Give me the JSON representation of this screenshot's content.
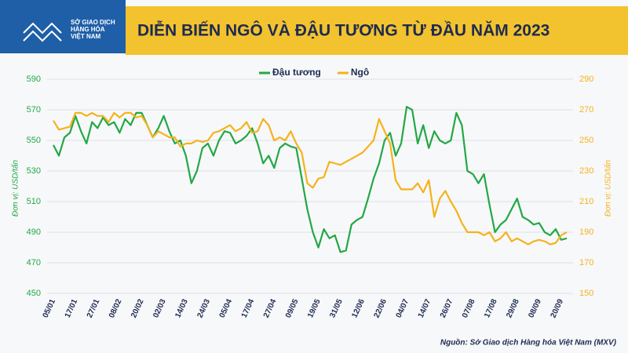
{
  "chart_data": {
    "type": "line",
    "brand": [
      "SỞ GIAO DỊCH",
      "HÀNG HÓA",
      "VIỆT NAM"
    ],
    "title": "DIỄN BIẾN NGÔ VÀ ĐẬU TƯƠNG TỪ ĐẦU NĂM 2023",
    "y_label": "Đơn vị: USD/tấn",
    "y2_label": "Đơn vị: USD/tấn",
    "source": "Nguồn: Sở Giao dịch Hàng hóa Việt Nam (MXV)",
    "legend": "top",
    "categories": [
      "05/01",
      null,
      null,
      null,
      "17/01",
      null,
      null,
      null,
      "27/01",
      null,
      null,
      null,
      "08/02",
      null,
      null,
      null,
      "20/02",
      null,
      null,
      null,
      "02/03",
      null,
      null,
      null,
      "14/03",
      null,
      null,
      null,
      "24/03",
      null,
      null,
      null,
      "05/04",
      null,
      null,
      null,
      "17/04",
      null,
      null,
      null,
      "27/04",
      null,
      null,
      null,
      "09/05",
      null,
      null,
      null,
      "19/05",
      null,
      null,
      null,
      "31/05",
      null,
      null,
      null,
      "12/06",
      null,
      null,
      null,
      "22/06",
      null,
      null,
      null,
      "04/07",
      null,
      null,
      null,
      "14/07",
      null,
      null,
      null,
      "26/07",
      null,
      null,
      null,
      "07/08",
      null,
      null,
      null,
      "17/08",
      null,
      null,
      null,
      "29/08",
      null,
      null,
      null,
      "08/09",
      null,
      null,
      null,
      "20/09",
      null
    ],
    "series": [
      {
        "name": "Đậu tương",
        "color": "#22a845",
        "axis": "y",
        "values": [
          547,
          540,
          552,
          555,
          566,
          556,
          548,
          562,
          558,
          565,
          560,
          562,
          555,
          564,
          560,
          568,
          568,
          560,
          552,
          558,
          566,
          556,
          548,
          550,
          540,
          522,
          530,
          545,
          548,
          540,
          550,
          556,
          555,
          548,
          550,
          553,
          558,
          548,
          535,
          540,
          532,
          545,
          548,
          546,
          545,
          525,
          505,
          490,
          480,
          492,
          486,
          488,
          477,
          478,
          495,
          498,
          500,
          512,
          525,
          535,
          550,
          555,
          540,
          548,
          572,
          570,
          548,
          560,
          545,
          556,
          550,
          548,
          550,
          568,
          560,
          530,
          528,
          522,
          528,
          508,
          490,
          495,
          498,
          505,
          512,
          500,
          498,
          495,
          496,
          490,
          488,
          492,
          485,
          486
        ]
      },
      {
        "name": "Ngô",
        "color": "#f5b21b",
        "axis": "y2",
        "values": [
          263,
          257,
          258,
          259,
          268,
          268,
          266,
          268,
          266,
          266,
          262,
          268,
          265,
          268,
          268,
          265,
          266,
          260,
          252,
          256,
          254,
          252,
          252,
          246,
          248,
          248,
          250,
          249,
          250,
          255,
          256,
          258,
          260,
          256,
          258,
          262,
          255,
          256,
          264,
          260,
          250,
          252,
          250,
          256,
          248,
          242,
          222,
          219,
          225,
          226,
          236,
          235,
          234,
          236,
          238,
          240,
          242,
          246,
          250,
          264,
          256,
          248,
          224,
          218,
          218,
          218,
          222,
          216,
          224,
          200,
          212,
          217,
          210,
          204,
          196,
          190,
          190,
          190,
          188,
          190,
          184,
          186,
          190,
          184,
          186,
          184,
          182,
          184,
          185,
          184,
          182,
          183,
          188,
          190
        ]
      }
    ],
    "ylim": [
      450,
      590
    ],
    "yticks": [
      450,
      470,
      490,
      510,
      530,
      550,
      570,
      590
    ],
    "y2lim": [
      150,
      290
    ],
    "y2ticks": [
      150,
      170,
      190,
      210,
      230,
      250,
      270,
      290
    ],
    "grid": true
  }
}
